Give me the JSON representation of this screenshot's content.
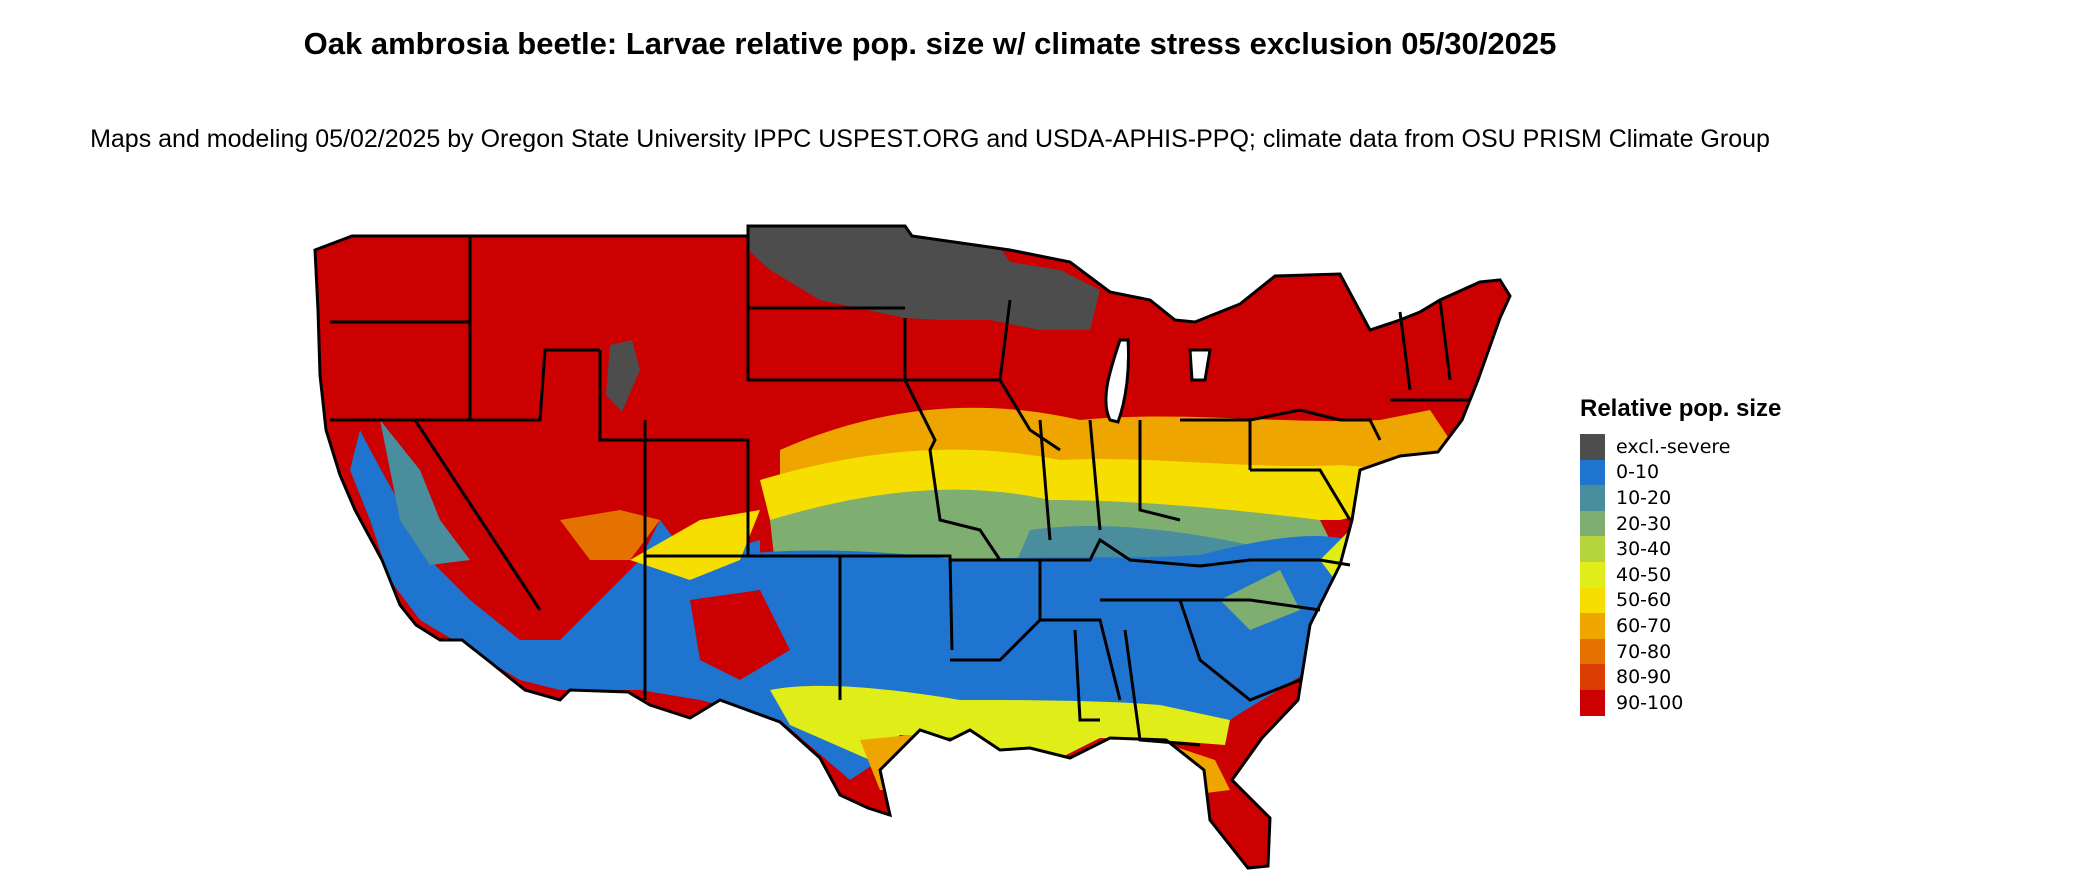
{
  "title": "Oak ambrosia beetle: Larvae relative pop. size w/ climate stress exclusion 05/30/2025",
  "subtitle": "Maps and modeling 05/02/2025 by Oregon State University IPPC USPEST.ORG and USDA-APHIS-PPQ; climate data from OSU PRISM Climate Group",
  "legend": {
    "title": "Relative pop. size",
    "items": [
      {
        "label": "excl.-severe",
        "color": "#4d4d4d"
      },
      {
        "label": "0-10",
        "color": "#1f74d0"
      },
      {
        "label": "10-20",
        "color": "#4a8d9c"
      },
      {
        "label": "20-30",
        "color": "#7faf70"
      },
      {
        "label": "30-40",
        "color": "#b5d33a"
      },
      {
        "label": "40-50",
        "color": "#e1ed19"
      },
      {
        "label": "50-60",
        "color": "#f6df00"
      },
      {
        "label": "60-70",
        "color": "#efa500"
      },
      {
        "label": "70-80",
        "color": "#e57100"
      },
      {
        "label": "80-90",
        "color": "#db3d00"
      },
      {
        "label": "90-100",
        "color": "#cc0000"
      }
    ]
  }
}
